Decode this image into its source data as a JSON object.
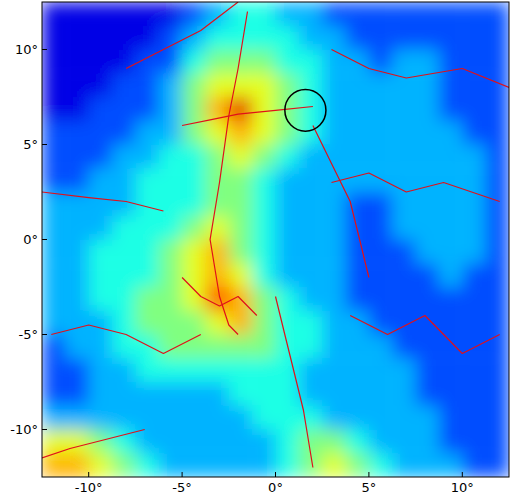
{
  "chart_data": {
    "type": "heatmap",
    "xlim": [
      -12.5,
      12.5
    ],
    "ylim": [
      -12.5,
      12.5
    ],
    "xticks": [
      {
        "value": -10,
        "label": "-10°"
      },
      {
        "value": -5,
        "label": "-5°"
      },
      {
        "value": 0,
        "label": "0°"
      },
      {
        "value": 5,
        "label": "5°"
      },
      {
        "value": 10,
        "label": "10°"
      }
    ],
    "yticks": [
      {
        "value": -10,
        "label": "-10°"
      },
      {
        "value": -5,
        "label": "-5°"
      },
      {
        "value": 0,
        "label": "0°"
      },
      {
        "value": 5,
        "label": "5°"
      },
      {
        "value": 10,
        "label": "10°"
      }
    ],
    "grid": false,
    "value_range": [
      0,
      10
    ],
    "cells": [
      [
        1,
        1,
        1,
        1,
        1,
        1,
        2,
        3,
        4,
        4,
        3,
        3,
        2,
        2,
        2,
        2,
        2,
        2,
        2,
        2
      ],
      [
        1,
        1,
        1,
        1,
        1,
        2,
        3,
        4,
        4,
        4,
        4,
        3,
        3,
        2,
        2,
        2,
        2,
        2,
        2,
        2
      ],
      [
        1,
        1,
        1,
        1,
        2,
        2,
        4,
        5,
        5,
        5,
        4,
        4,
        3,
        3,
        2,
        3,
        3,
        2,
        2,
        2
      ],
      [
        1,
        1,
        1,
        2,
        2,
        3,
        5,
        6,
        6,
        6,
        5,
        4,
        3,
        3,
        3,
        3,
        3,
        2,
        2,
        2
      ],
      [
        1,
        1,
        2,
        2,
        2,
        3,
        5,
        7,
        9,
        6,
        5,
        4,
        3,
        3,
        3,
        3,
        3,
        2,
        2,
        2
      ],
      [
        2,
        2,
        2,
        2,
        3,
        3,
        5,
        6,
        7,
        6,
        5,
        4,
        3,
        3,
        3,
        3,
        3,
        3,
        2,
        2
      ],
      [
        2,
        2,
        2,
        3,
        3,
        4,
        4,
        5,
        6,
        5,
        4,
        3,
        3,
        3,
        3,
        3,
        3,
        3,
        3,
        2
      ],
      [
        2,
        2,
        3,
        3,
        4,
        4,
        4,
        5,
        5,
        4,
        3,
        3,
        3,
        3,
        3,
        3,
        3,
        3,
        3,
        2
      ],
      [
        3,
        3,
        3,
        3,
        4,
        4,
        4,
        5,
        5,
        4,
        3,
        3,
        3,
        2,
        2,
        3,
        3,
        3,
        3,
        2
      ],
      [
        3,
        3,
        3,
        4,
        4,
        4,
        5,
        6,
        5,
        4,
        3,
        3,
        3,
        2,
        2,
        3,
        3,
        3,
        3,
        2
      ],
      [
        3,
        3,
        4,
        4,
        4,
        5,
        6,
        7,
        5,
        4,
        3,
        3,
        3,
        2,
        2,
        2,
        3,
        3,
        3,
        2
      ],
      [
        3,
        3,
        4,
        4,
        4,
        5,
        6,
        7,
        6,
        4,
        3,
        3,
        3,
        2,
        2,
        2,
        2,
        3,
        2,
        2
      ],
      [
        3,
        3,
        4,
        4,
        5,
        5,
        6,
        8,
        7,
        5,
        4,
        3,
        3,
        2,
        2,
        2,
        2,
        2,
        2,
        2
      ],
      [
        3,
        3,
        3,
        4,
        5,
        5,
        5,
        6,
        7,
        5,
        4,
        4,
        3,
        3,
        2,
        2,
        2,
        2,
        2,
        2
      ],
      [
        2,
        3,
        3,
        4,
        4,
        5,
        5,
        5,
        5,
        5,
        4,
        4,
        3,
        3,
        3,
        2,
        2,
        2,
        2,
        2
      ],
      [
        2,
        2,
        3,
        3,
        4,
        4,
        4,
        4,
        4,
        4,
        4,
        3,
        3,
        3,
        3,
        3,
        2,
        2,
        2,
        2
      ],
      [
        2,
        2,
        3,
        3,
        3,
        3,
        3,
        3,
        4,
        4,
        4,
        3,
        3,
        3,
        3,
        3,
        2,
        2,
        2,
        2
      ],
      [
        3,
        3,
        3,
        3,
        3,
        3,
        3,
        3,
        3,
        4,
        4,
        4,
        3,
        3,
        3,
        3,
        3,
        2,
        2,
        2
      ],
      [
        6,
        6,
        5,
        4,
        3,
        3,
        3,
        3,
        3,
        3,
        4,
        5,
        5,
        4,
        3,
        3,
        3,
        2,
        2,
        2
      ],
      [
        7,
        7,
        6,
        5,
        4,
        3,
        3,
        3,
        3,
        3,
        4,
        5,
        6,
        5,
        4,
        3,
        3,
        3,
        2,
        2
      ]
    ],
    "filaments": [
      {
        "color": "#e0101a",
        "x": [
          -1.5,
          -2,
          -2.5,
          -3,
          -3.5,
          -3,
          -2.5,
          -2
        ],
        "y": [
          12,
          9,
          6.5,
          3,
          0,
          -3,
          -4.5,
          -5
        ]
      },
      {
        "color": "#e0101a",
        "x": [
          -5,
          -3.5,
          -2,
          0,
          2
        ],
        "y": [
          6,
          6.3,
          6.6,
          6.8,
          7
        ]
      },
      {
        "color": "#e0101a",
        "x": [
          -12.5,
          -10,
          -8,
          -6
        ],
        "y": [
          2.5,
          2.2,
          2,
          1.5
        ]
      },
      {
        "color": "#e0101a",
        "x": [
          -12,
          -10,
          -8,
          -6,
          -4
        ],
        "y": [
          -5,
          -4.5,
          -5,
          -6,
          -5
        ]
      },
      {
        "color": "#e0101a",
        "x": [
          3,
          5,
          7,
          9,
          12
        ],
        "y": [
          3,
          3.5,
          2.5,
          3,
          2
        ]
      },
      {
        "color": "#e0101a",
        "x": [
          3,
          5,
          7,
          10,
          12.5
        ],
        "y": [
          10,
          9,
          8.5,
          9,
          8
        ]
      },
      {
        "color": "#e0101a",
        "x": [
          -12.5,
          -11,
          -9,
          -7
        ],
        "y": [
          -11.5,
          -11,
          -10.5,
          -10
        ]
      },
      {
        "color": "#e0101a",
        "x": [
          0,
          0.5,
          1,
          1.5,
          2
        ],
        "y": [
          -3,
          -5,
          -7,
          -9,
          -12
        ]
      },
      {
        "color": "#e0101a",
        "x": [
          4,
          6,
          8,
          10,
          12
        ],
        "y": [
          -4,
          -5,
          -4,
          -6,
          -5
        ]
      },
      {
        "color": "#e0101a",
        "x": [
          -8,
          -6,
          -4,
          -2
        ],
        "y": [
          9,
          10,
          11,
          12.5
        ]
      },
      {
        "color": "#e0101a",
        "x": [
          -5,
          -4,
          -3,
          -2,
          -1
        ],
        "y": [
          -2,
          -3,
          -3.5,
          -3,
          -4
        ]
      },
      {
        "color": "#e0101a",
        "x": [
          2,
          3,
          4,
          4.5,
          5
        ],
        "y": [
          6,
          4,
          2,
          0,
          -2
        ]
      }
    ],
    "circle": {
      "x": 1.6,
      "y": 6.8,
      "r": 1.1,
      "color": "#000000"
    }
  }
}
